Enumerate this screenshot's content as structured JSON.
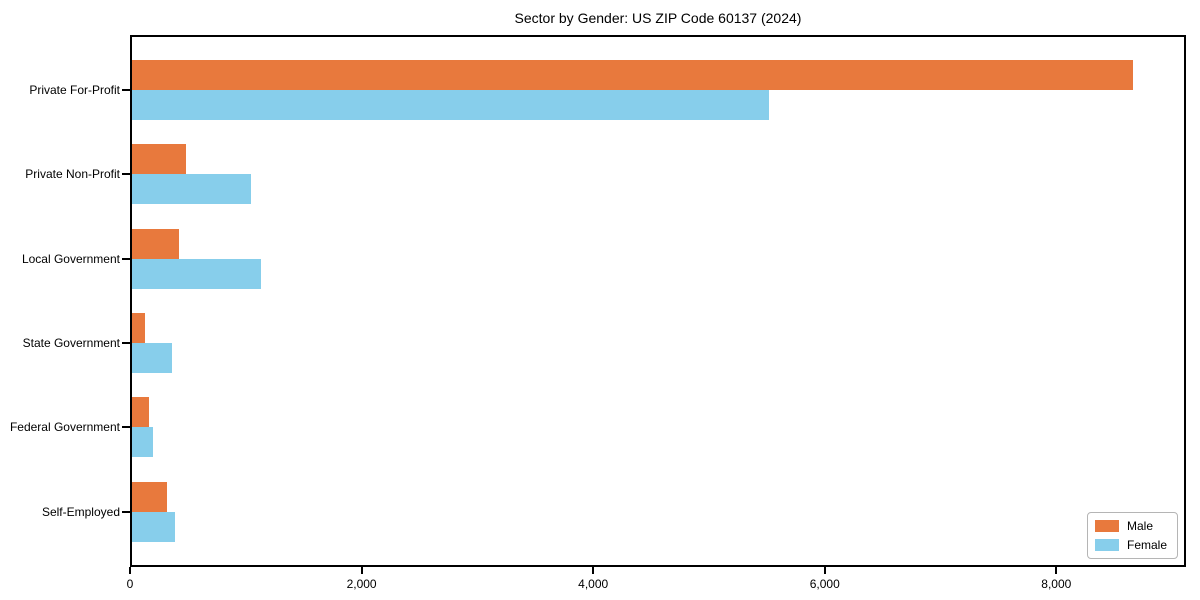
{
  "chart_data": {
    "type": "bar",
    "orientation": "horizontal",
    "title": "Sector by Gender: US ZIP Code 60137 (2024)",
    "categories": [
      "Private For-Profit",
      "Private Non-Profit",
      "Local Government",
      "State Government",
      "Federal Government",
      "Self-Employed"
    ],
    "series": [
      {
        "name": "Male",
        "color": "#E8793D",
        "values": [
          8680,
          470,
          410,
          110,
          150,
          300
        ]
      },
      {
        "name": "Female",
        "color": "#87CEEB",
        "values": [
          5520,
          1035,
          1115,
          350,
          185,
          370
        ]
      }
    ],
    "xlabel": "",
    "ylabel": "",
    "xlim": [
      0,
      9120
    ],
    "x_ticks": [
      0,
      2000,
      4000,
      6000,
      8000
    ],
    "x_tick_labels": [
      "0",
      "2,000",
      "4,000",
      "6,000",
      "8,000"
    ],
    "grid": false,
    "legend_position": "lower-right",
    "axis_color": "#000000",
    "background_color": "#ffffff"
  }
}
